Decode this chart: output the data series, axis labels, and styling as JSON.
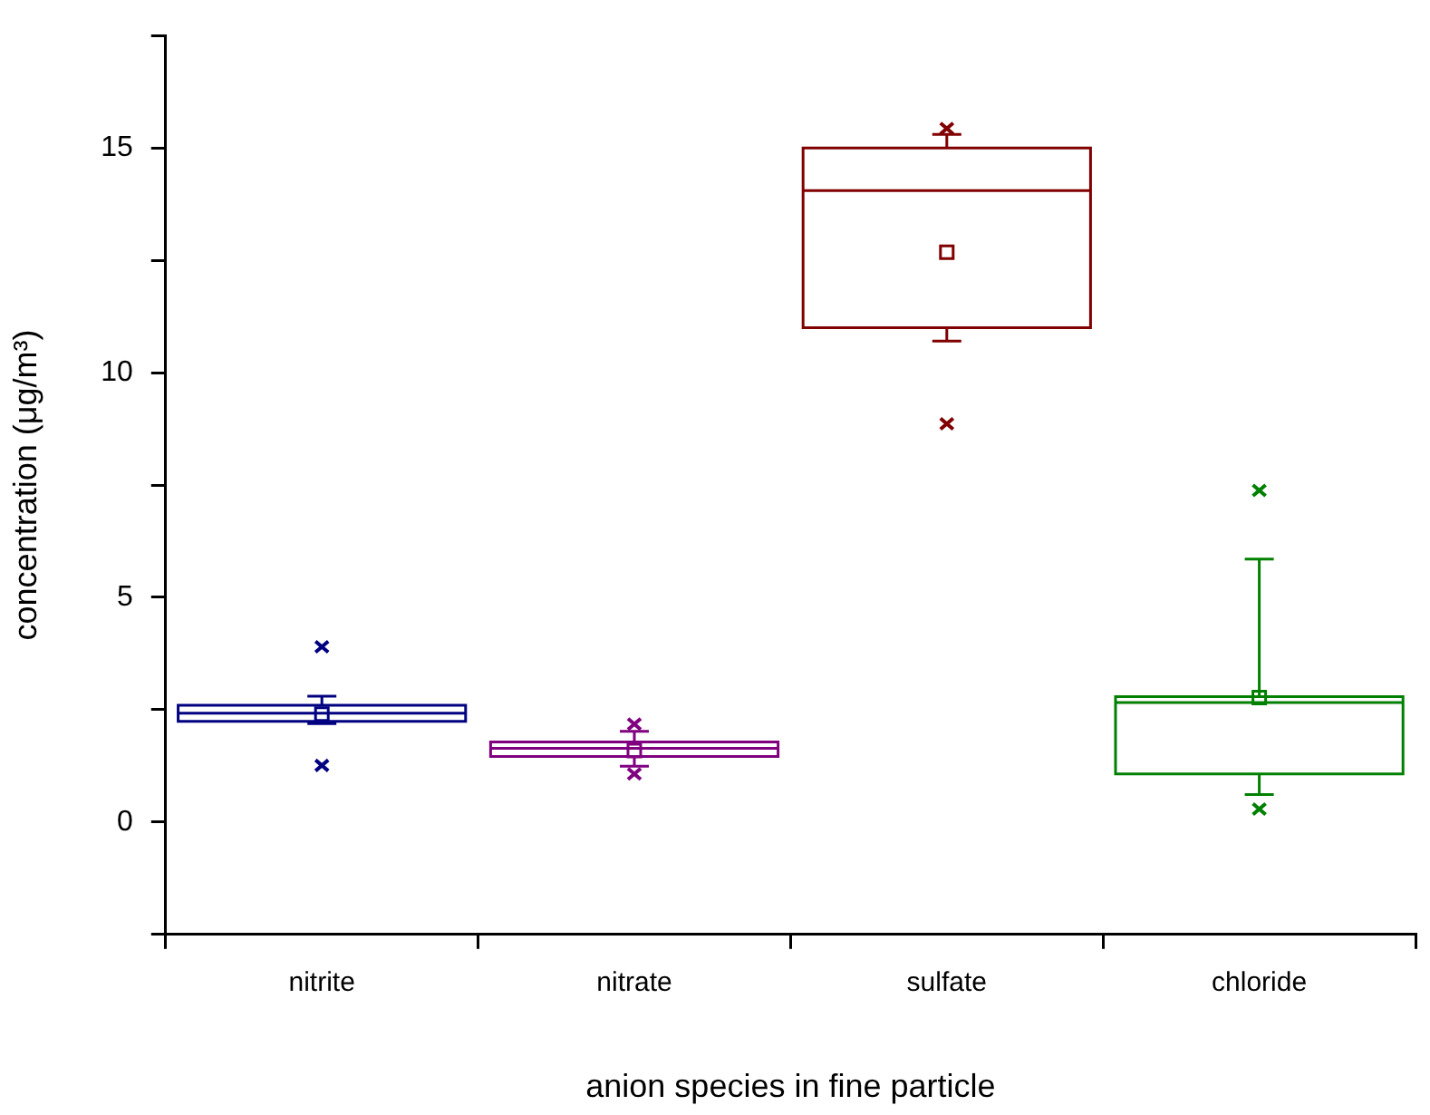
{
  "chart_data": {
    "type": "box",
    "categories": [
      "nitrite",
      "nitrate",
      "sulfate",
      "chloride"
    ],
    "colors": [
      "#000080",
      "#800080",
      "#800000",
      "#008000"
    ],
    "boxes": [
      {
        "low": 2.19,
        "q1": 2.24,
        "median": 2.42,
        "q3": 2.6,
        "high": 2.8,
        "mean": 2.4,
        "outliers": [
          3.9,
          1.26
        ]
      },
      {
        "low": 1.24,
        "q1": 1.46,
        "median": 1.64,
        "q3": 1.78,
        "high": 2.02,
        "mean": 1.59,
        "outliers": [
          2.18,
          1.07
        ]
      },
      {
        "low": 10.7,
        "q1": 11.0,
        "median": 14.05,
        "q3": 15.0,
        "high": 15.3,
        "mean": 12.68,
        "outliers": [
          15.43,
          8.86
        ]
      },
      {
        "low": 0.61,
        "q1": 1.07,
        "median": 2.66,
        "q3": 2.79,
        "high": 5.85,
        "mean": 2.77,
        "outliers": [
          7.38,
          0.29
        ]
      }
    ],
    "xlabel": "anion species in fine particle",
    "ylabel": "concentration (μg/m³)",
    "ylim": [
      -2.5,
      17.5
    ],
    "yticks": [
      {
        "value": -2.5,
        "label": null
      },
      0,
      {
        "value": 2.5,
        "label": null
      },
      5,
      {
        "value": 7.5,
        "label": null
      },
      10,
      {
        "value": 12.5,
        "label": null
      },
      15,
      {
        "value": 17.5,
        "label": null
      }
    ],
    "grid": false,
    "legend": false
  }
}
